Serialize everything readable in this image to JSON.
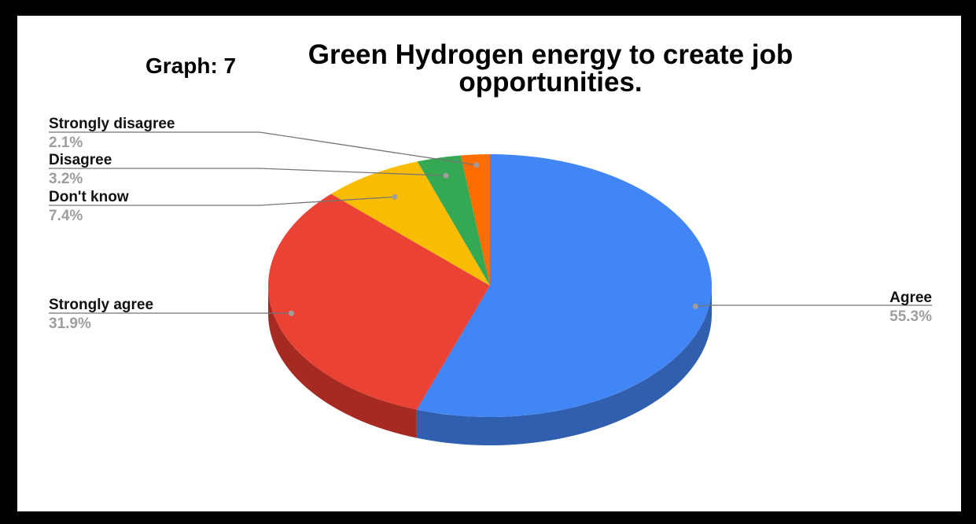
{
  "graph_label": "Graph: 7",
  "chart_data": {
    "type": "pie",
    "title": "Green Hydrogen energy to create job opportunities.",
    "title_lines": [
      "Green Hydrogen energy to create job",
      "opportunities."
    ],
    "three_d": true,
    "slices": [
      {
        "name": "Agree",
        "value": 55.3,
        "label": "55.3%",
        "color": "#4285f4",
        "side_color": "#2f5fae"
      },
      {
        "name": "Strongly agree",
        "value": 31.9,
        "label": "31.9%",
        "color": "#ea4335",
        "side_color": "#a52a22"
      },
      {
        "name": "Don't know",
        "value": 7.4,
        "label": "7.4%",
        "color": "#fbbc04",
        "side_color": "#b38600"
      },
      {
        "name": "Disagree",
        "value": 3.2,
        "label": "3.2%",
        "color": "#34a853",
        "side_color": "#24773b"
      },
      {
        "name": "Strongly disagree",
        "value": 2.1,
        "label": "2.1%",
        "color": "#ff6d01",
        "side_color": "#b34c00"
      }
    ]
  }
}
